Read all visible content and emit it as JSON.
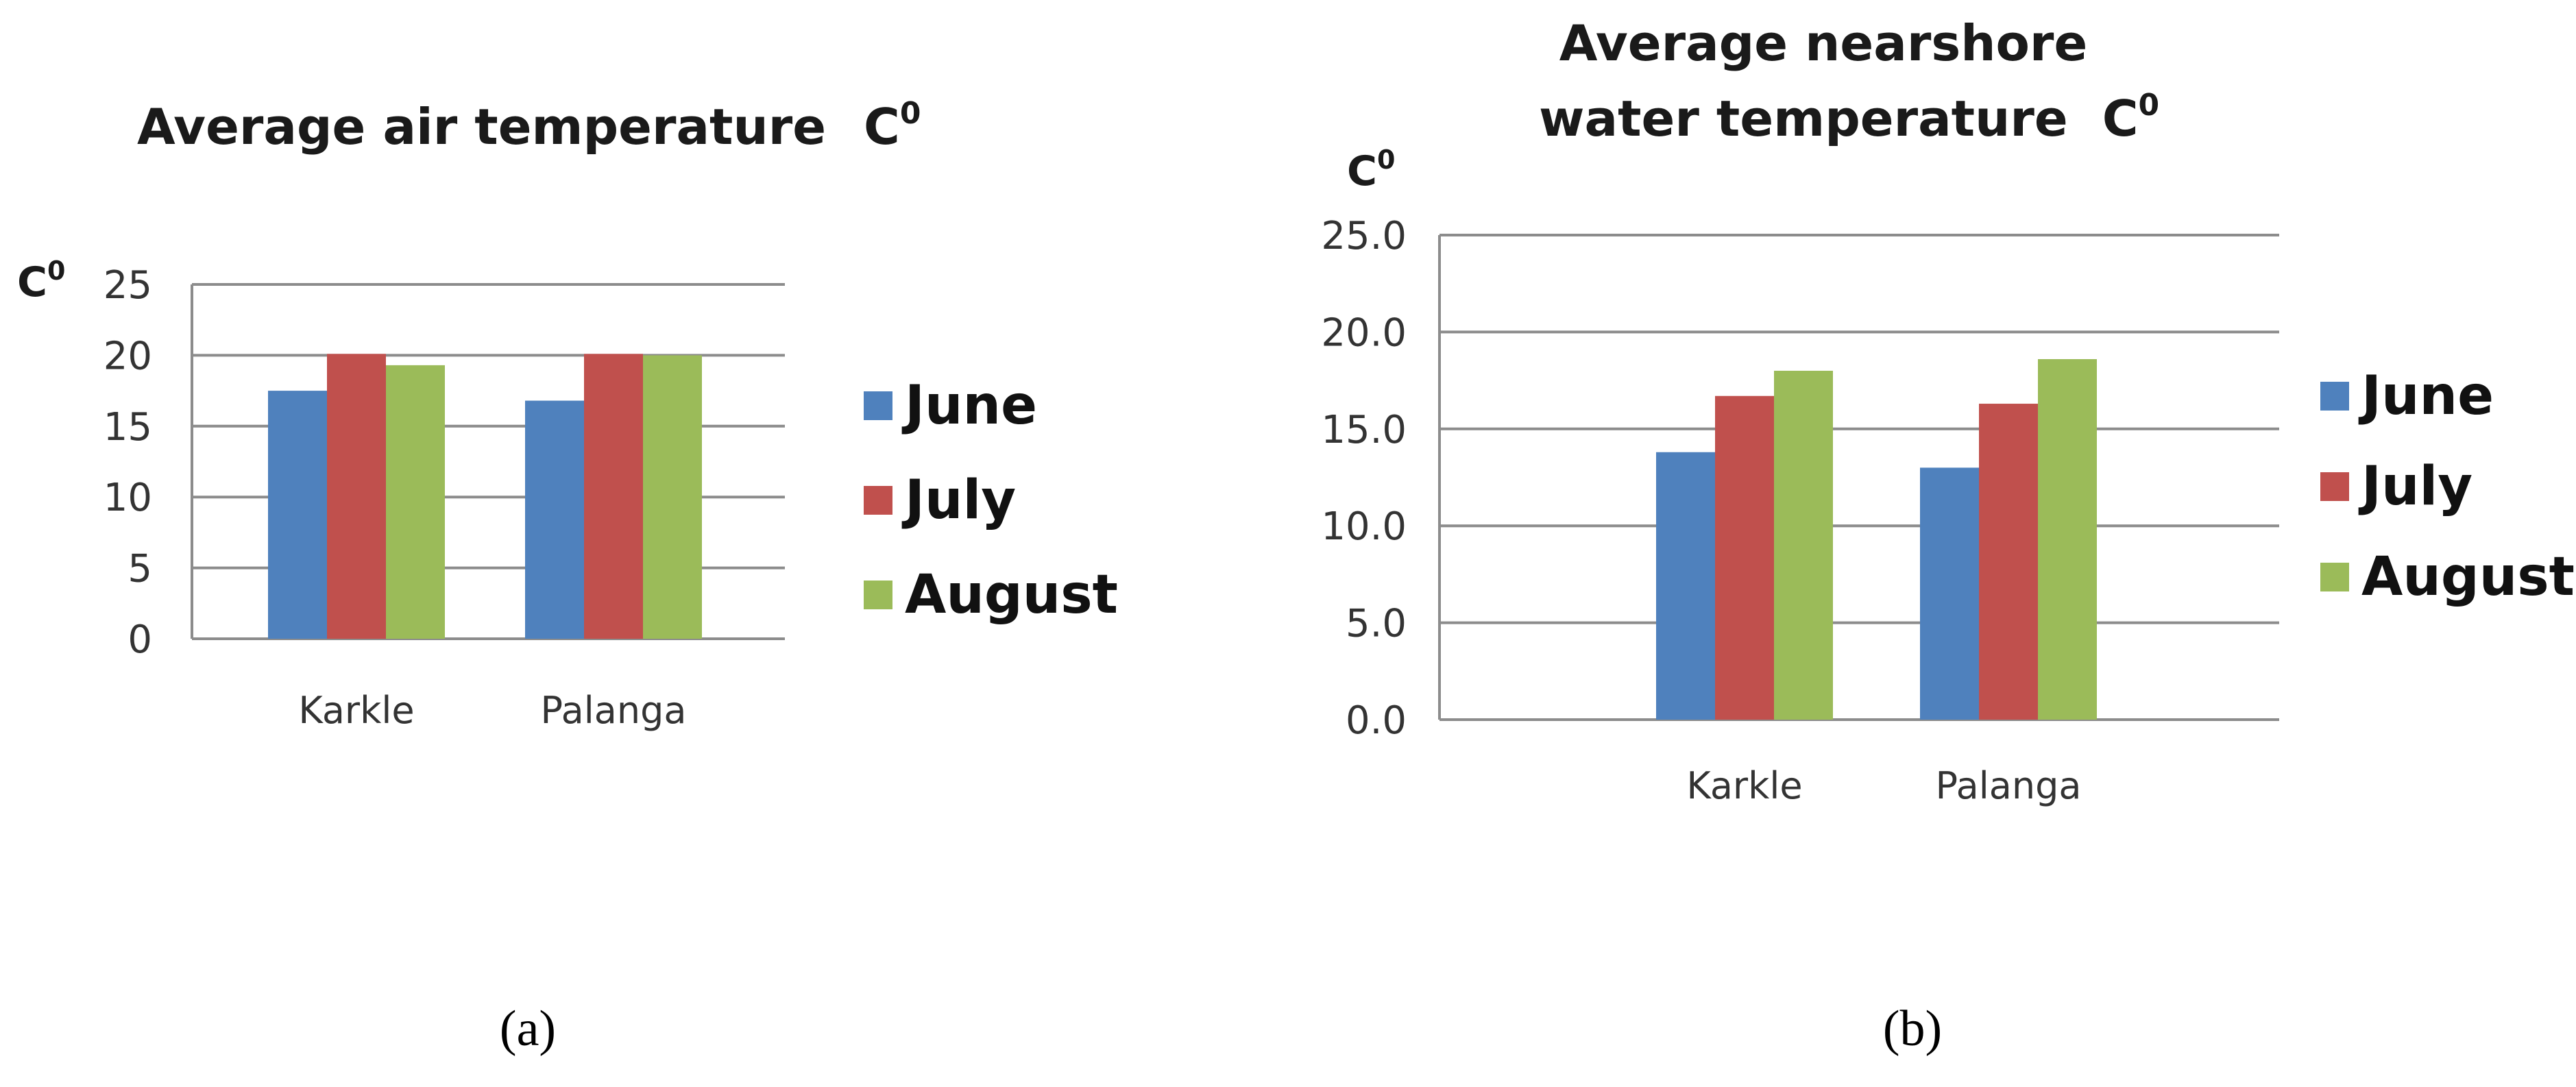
{
  "chart_data": [
    {
      "type": "bar",
      "title": "Average air temperature",
      "title_unit": "C",
      "title_unit_sup": "0",
      "ylabel": "C",
      "ylabel_sup": "0",
      "categories": [
        "Karkle",
        "Palanga"
      ],
      "series": [
        {
          "name": "June",
          "values": [
            17.5,
            16.8
          ]
        },
        {
          "name": "July",
          "values": [
            20.1,
            20.1
          ]
        },
        {
          "name": "August",
          "values": [
            19.3,
            20.0
          ]
        }
      ],
      "ylim": [
        0,
        25
      ],
      "yticks": [
        "0",
        "5",
        "10",
        "15",
        "20",
        "25"
      ],
      "grid": true,
      "legend": "right",
      "panel_label": "(a)"
    },
    {
      "type": "bar",
      "title_line1": "Average nearshore",
      "title_line2": "water temperature",
      "title_unit": "C",
      "title_unit_sup": "0",
      "ylabel": "C",
      "ylabel_sup": "0",
      "categories": [
        "Karkle",
        "Palanga"
      ],
      "series": [
        {
          "name": "June",
          "values": [
            13.8,
            13.0
          ]
        },
        {
          "name": "July",
          "values": [
            16.7,
            16.3
          ]
        },
        {
          "name": "August",
          "values": [
            18.0,
            18.6
          ]
        }
      ],
      "ylim": [
        0,
        25
      ],
      "yticks": [
        "0.0",
        "5.0",
        "10.0",
        "15.0",
        "20.0",
        "25.0"
      ],
      "grid": true,
      "legend": "right",
      "panel_label": "(b)"
    }
  ],
  "colors": {
    "June": "#4f81bd",
    "July": "#c0504d",
    "August": "#9bbb59"
  }
}
